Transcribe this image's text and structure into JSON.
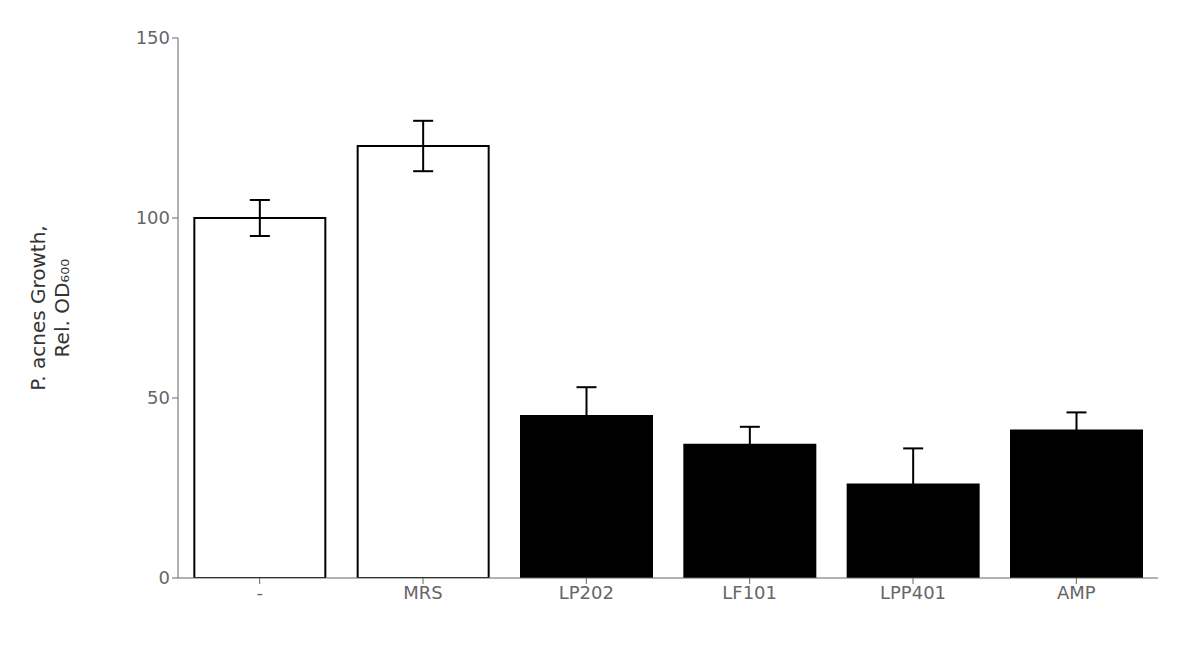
{
  "chart_data": {
    "type": "bar",
    "y_label": "P. acnes Growth,\nRel. OD₆₀₀",
    "categories": [
      "-",
      "MRS",
      "LP202",
      "LF101",
      "LPP401",
      "AMP"
    ],
    "values": [
      100,
      120,
      45,
      37,
      26,
      41
    ],
    "errors": [
      5,
      7,
      8,
      5,
      10,
      5
    ],
    "colors": [
      "white",
      "white",
      "black",
      "black",
      "black",
      "black"
    ],
    "ylim": [
      0,
      150
    ],
    "yticks": [
      0,
      50,
      100,
      150
    ],
    "grid": false
  }
}
